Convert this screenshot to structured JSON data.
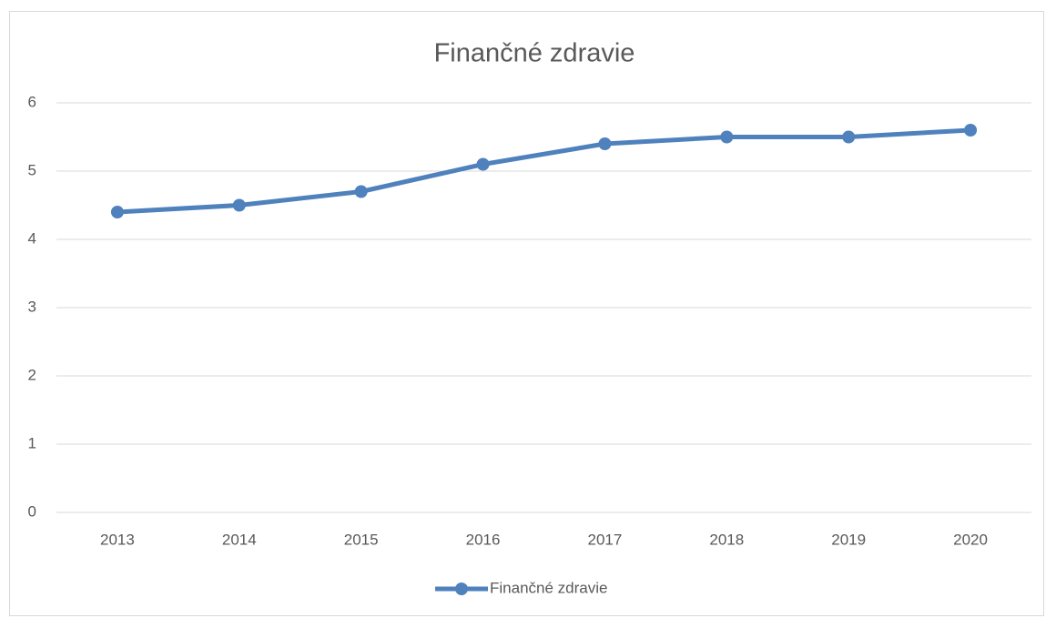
{
  "chart_data": {
    "type": "line",
    "title": "Finančné zdravie",
    "categories": [
      "2013",
      "2014",
      "2015",
      "2016",
      "2017",
      "2018",
      "2019",
      "2020"
    ],
    "series": [
      {
        "name": "Finančné zdravie",
        "color": "#4f81bd",
        "values": [
          4.4,
          4.5,
          4.7,
          5.1,
          5.4,
          5.5,
          5.5,
          5.6
        ]
      }
    ],
    "ylim": [
      0,
      6
    ],
    "yticks": [
      0,
      1,
      2,
      3,
      4,
      5,
      6
    ],
    "grid": true,
    "legend": "bottom"
  }
}
